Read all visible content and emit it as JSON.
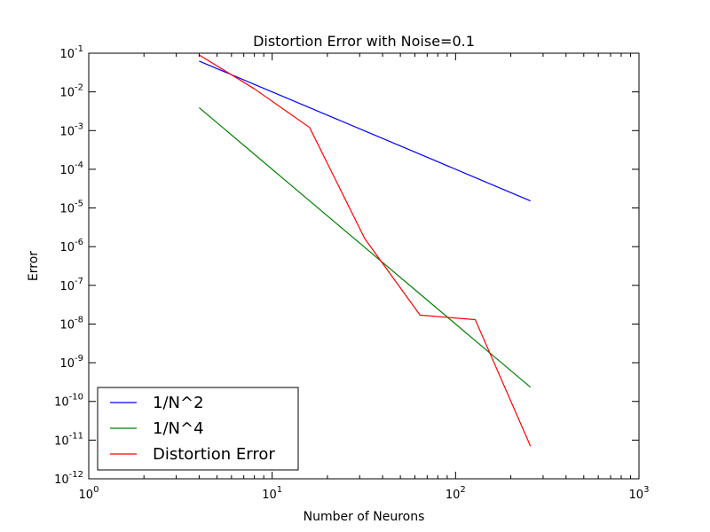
{
  "chart_data": {
    "type": "line",
    "title": "Distortion Error with Noise=0.1",
    "xlabel": "Number of Neurons",
    "ylabel": "Error",
    "xscale": "log",
    "yscale": "log",
    "xlim": [
      1,
      1000
    ],
    "ylim": [
      1e-12,
      0.1
    ],
    "grid": false,
    "legend_position": "bottom-left",
    "x_ticks": [
      {
        "base": "10",
        "exp": "0",
        "value": 1
      },
      {
        "base": "10",
        "exp": "1",
        "value": 10
      },
      {
        "base": "10",
        "exp": "2",
        "value": 100
      },
      {
        "base": "10",
        "exp": "3",
        "value": 1000
      }
    ],
    "y_ticks": [
      {
        "base": "10",
        "exp": "-1",
        "value": 0.1
      },
      {
        "base": "10",
        "exp": "-2",
        "value": 0.01
      },
      {
        "base": "10",
        "exp": "-3",
        "value": 0.001
      },
      {
        "base": "10",
        "exp": "-4",
        "value": 0.0001
      },
      {
        "base": "10",
        "exp": "-5",
        "value": 1e-05
      },
      {
        "base": "10",
        "exp": "-6",
        "value": 1e-06
      },
      {
        "base": "10",
        "exp": "-7",
        "value": 1e-07
      },
      {
        "base": "10",
        "exp": "-8",
        "value": 1e-08
      },
      {
        "base": "10",
        "exp": "-9",
        "value": 1e-09
      },
      {
        "base": "10",
        "exp": "-10",
        "value": 1e-10
      },
      {
        "base": "10",
        "exp": "-11",
        "value": 1e-11
      },
      {
        "base": "10",
        "exp": "-12",
        "value": 1e-12
      }
    ],
    "series": [
      {
        "name": "1/N^2",
        "color": "#0000ff",
        "x": [
          4,
          8,
          16,
          32,
          64,
          128,
          256
        ],
        "y": [
          0.0625,
          0.015625,
          0.00390625,
          0.0009765625,
          0.000244140625,
          6.103515625e-05,
          1.52587890625e-05
        ]
      },
      {
        "name": "1/N^4",
        "color": "#008000",
        "x": [
          4,
          8,
          16,
          32,
          64,
          128,
          256
        ],
        "y": [
          0.00390625,
          0.000244140625,
          1.52587890625e-05,
          9.5367431640625e-07,
          5.960464477539063e-08,
          3.725290298461914e-09,
          2.3283064365386963e-10
        ]
      },
      {
        "name": "Distortion Error",
        "color": "#ff0000",
        "x": [
          4,
          8,
          16,
          32,
          64,
          128,
          256
        ],
        "y": [
          0.09,
          0.012,
          0.0012,
          1.6e-06,
          1.7e-08,
          1.3e-08,
          7e-12
        ]
      }
    ]
  }
}
